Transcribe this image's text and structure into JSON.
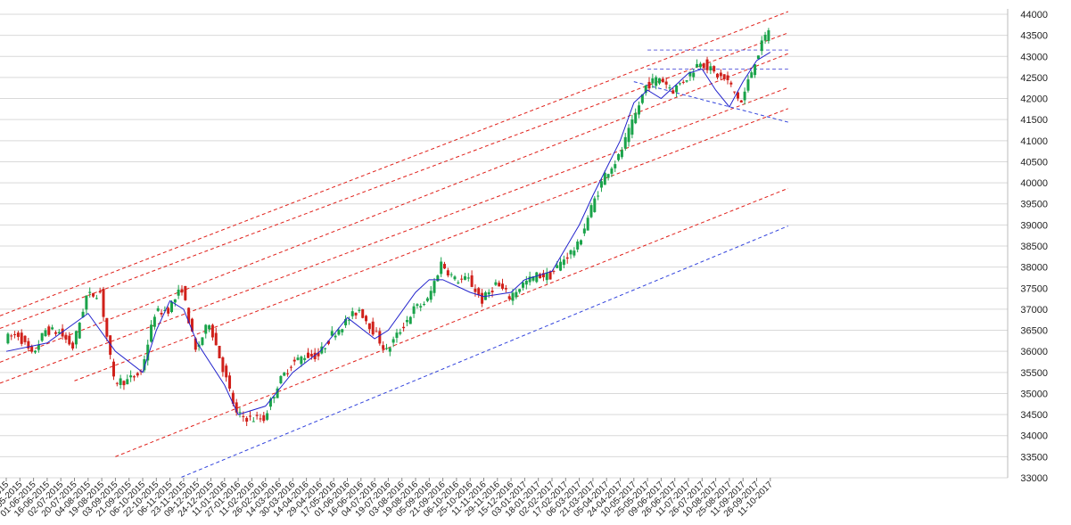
{
  "colors": {
    "background": "#ffffff",
    "grid": "#d9d9d9",
    "up_candle": "#1aa34a",
    "down_candle": "#d0201a",
    "moving_average": "#2222cc",
    "red_channel": "#e0201a",
    "blue_support": "#3344dd",
    "blue_dashed_level": "#6666dd"
  },
  "chart_data": {
    "type": "line",
    "subtype": "candlestick",
    "title": "",
    "xlabel": "",
    "ylabel": "",
    "y_axis_side": "right",
    "ylim": [
      33000,
      44000
    ],
    "y_ticks": [
      33000,
      33500,
      34000,
      34500,
      35000,
      35500,
      36000,
      36500,
      37000,
      37500,
      38000,
      38500,
      39000,
      39500,
      40000,
      40500,
      41000,
      41500,
      42000,
      42500,
      43000,
      43500,
      44000
    ],
    "x_tick_labels": [
      "30-04-2015",
      "14-05-2015",
      "01-06-2015",
      "16-06-2015",
      "02-07-2015",
      "20-07-2015",
      "04-08-2015",
      "19-08-2015",
      "03-09-2015",
      "21-09-2015",
      "06-10-2015",
      "22-10-2015",
      "06-11-2015",
      "23-11-2015",
      "09-12-2015",
      "24-12-2015",
      "11-01-2016",
      "27-01-2016",
      "11-02-2016",
      "26-02-2016",
      "14-03-2016",
      "30-03-2016",
      "14-04-2016",
      "29-04-2016",
      "17-05-2016",
      "01-06-2016",
      "16-06-2016",
      "04-07-2016",
      "19-07-2016",
      "03-08-2016",
      "19-08-2016",
      "05-09-2016",
      "21-09-2016",
      "06-10-2016",
      "25-10-2016",
      "11-11-2016",
      "29-11-2016",
      "15-12-2016",
      "03-01-2017",
      "18-01-2017",
      "02-02-2017",
      "17-02-2017",
      "06-03-2017",
      "21-03-2017",
      "05-04-2017",
      "24-04-2017",
      "10-05-2017",
      "25-05-2017",
      "09-06-2017",
      "26-06-2017",
      "11-07-2017",
      "26-07-2017",
      "10-08-2017",
      "25-08-2017",
      "11-09-2017",
      "26-09-2017",
      "11-10-2017"
    ],
    "grid": "horizontal",
    "legend": "none",
    "close_series": [
      {
        "date": "30-04-2015",
        "close": 36300
      },
      {
        "date": "14-05-2015",
        "close": 36400
      },
      {
        "date": "01-06-2015",
        "close": 35900
      },
      {
        "date": "16-06-2015",
        "close": 36500
      },
      {
        "date": "02-07-2015",
        "close": 36450
      },
      {
        "date": "20-07-2015",
        "close": 36100
      },
      {
        "date": "04-08-2015",
        "close": 37300
      },
      {
        "date": "19-08-2015",
        "close": 37400
      },
      {
        "date": "03-09-2015",
        "close": 35300
      },
      {
        "date": "21-09-2015",
        "close": 35300
      },
      {
        "date": "06-10-2015",
        "close": 35500
      },
      {
        "date": "22-10-2015",
        "close": 36900
      },
      {
        "date": "06-11-2015",
        "close": 37000
      },
      {
        "date": "23-11-2015",
        "close": 37500
      },
      {
        "date": "09-12-2015",
        "close": 36000
      },
      {
        "date": "24-12-2015",
        "close": 36700
      },
      {
        "date": "11-01-2016",
        "close": 35600
      },
      {
        "date": "27-01-2016",
        "close": 34500
      },
      {
        "date": "11-02-2016",
        "close": 34400
      },
      {
        "date": "26-02-2016",
        "close": 34400
      },
      {
        "date": "14-03-2016",
        "close": 35200
      },
      {
        "date": "30-03-2016",
        "close": 35700
      },
      {
        "date": "14-04-2016",
        "close": 35900
      },
      {
        "date": "29-04-2016",
        "close": 35900
      },
      {
        "date": "17-05-2016",
        "close": 36400
      },
      {
        "date": "01-06-2016",
        "close": 36700
      },
      {
        "date": "16-06-2016",
        "close": 37000
      },
      {
        "date": "04-07-2016",
        "close": 36500
      },
      {
        "date": "19-07-2016",
        "close": 36000
      },
      {
        "date": "03-08-2016",
        "close": 36500
      },
      {
        "date": "19-08-2016",
        "close": 37000
      },
      {
        "date": "05-09-2016",
        "close": 37200
      },
      {
        "date": "21-09-2016",
        "close": 38100
      },
      {
        "date": "06-10-2016",
        "close": 37700
      },
      {
        "date": "25-10-2016",
        "close": 37700
      },
      {
        "date": "11-11-2016",
        "close": 37200
      },
      {
        "date": "29-11-2016",
        "close": 37600
      },
      {
        "date": "15-12-2016",
        "close": 37300
      },
      {
        "date": "03-01-2017",
        "close": 37600
      },
      {
        "date": "18-01-2017",
        "close": 37800
      },
      {
        "date": "02-02-2017",
        "close": 37800
      },
      {
        "date": "17-02-2017",
        "close": 38200
      },
      {
        "date": "06-03-2017",
        "close": 38500
      },
      {
        "date": "21-03-2017",
        "close": 39400
      },
      {
        "date": "05-04-2017",
        "close": 40200
      },
      {
        "date": "24-04-2017",
        "close": 40600
      },
      {
        "date": "10-05-2017",
        "close": 41400
      },
      {
        "date": "25-05-2017",
        "close": 42300
      },
      {
        "date": "09-06-2017",
        "close": 42500
      },
      {
        "date": "26-06-2017",
        "close": 42200
      },
      {
        "date": "11-07-2017",
        "close": 42500
      },
      {
        "date": "26-07-2017",
        "close": 42900
      },
      {
        "date": "10-08-2017",
        "close": 42600
      },
      {
        "date": "25-08-2017",
        "close": 42400
      },
      {
        "date": "11-09-2017",
        "close": 41900
      },
      {
        "date": "26-09-2017",
        "close": 42900
      },
      {
        "date": "11-10-2017",
        "close": 43650
      }
    ],
    "moving_average": [
      {
        "date": "30-04-2015",
        "value": 36000
      },
      {
        "date": "16-06-2015",
        "value": 36200
      },
      {
        "date": "04-08-2015",
        "value": 36900
      },
      {
        "date": "03-09-2015",
        "value": 36000
      },
      {
        "date": "06-10-2015",
        "value": 35500
      },
      {
        "date": "22-10-2015",
        "value": 36500
      },
      {
        "date": "06-11-2015",
        "value": 37200
      },
      {
        "date": "23-11-2015",
        "value": 37000
      },
      {
        "date": "09-12-2015",
        "value": 36200
      },
      {
        "date": "11-01-2016",
        "value": 35200
      },
      {
        "date": "27-01-2016",
        "value": 34500
      },
      {
        "date": "26-02-2016",
        "value": 34700
      },
      {
        "date": "30-03-2016",
        "value": 35500
      },
      {
        "date": "29-04-2016",
        "value": 36000
      },
      {
        "date": "01-06-2016",
        "value": 36800
      },
      {
        "date": "04-07-2016",
        "value": 36300
      },
      {
        "date": "19-07-2016",
        "value": 36500
      },
      {
        "date": "19-08-2016",
        "value": 37400
      },
      {
        "date": "05-09-2016",
        "value": 37700
      },
      {
        "date": "21-09-2016",
        "value": 37700
      },
      {
        "date": "25-10-2016",
        "value": 37400
      },
      {
        "date": "11-11-2016",
        "value": 37300
      },
      {
        "date": "15-12-2016",
        "value": 37400
      },
      {
        "date": "03-01-2017",
        "value": 37700
      },
      {
        "date": "02-02-2017",
        "value": 37900
      },
      {
        "date": "06-03-2017",
        "value": 39000
      },
      {
        "date": "21-03-2017",
        "value": 39700
      },
      {
        "date": "24-04-2017",
        "value": 41000
      },
      {
        "date": "10-05-2017",
        "value": 41900
      },
      {
        "date": "25-05-2017",
        "value": 42200
      },
      {
        "date": "09-06-2017",
        "value": 42000
      },
      {
        "date": "26-06-2017",
        "value": 42300
      },
      {
        "date": "11-07-2017",
        "value": 42600
      },
      {
        "date": "26-07-2017",
        "value": 42700
      },
      {
        "date": "10-08-2017",
        "value": 42200
      },
      {
        "date": "25-08-2017",
        "value": 41800
      },
      {
        "date": "11-09-2017",
        "value": 42400
      },
      {
        "date": "26-09-2017",
        "value": 42900
      },
      {
        "date": "11-10-2017",
        "value": 43100
      }
    ],
    "trend_lines": [
      {
        "style": "red-dashed",
        "from": {
          "date": "30-04-2015",
          "value": 36900
        },
        "to": {
          "date": "11-10-2017",
          "value": 43900
        }
      },
      {
        "style": "red-dashed",
        "from": {
          "date": "30-04-2015",
          "value": 36600
        },
        "to": {
          "date": "11-10-2017",
          "value": 43400
        }
      },
      {
        "style": "red-dashed",
        "from": {
          "date": "30-04-2015",
          "value": 35800
        },
        "to": {
          "date": "11-10-2017",
          "value": 42900
        }
      },
      {
        "style": "red-dashed",
        "from": {
          "date": "30-04-2015",
          "value": 35300
        },
        "to": {
          "date": "11-10-2017",
          "value": 42100
        }
      },
      {
        "style": "red-dashed",
        "from": {
          "date": "20-07-2015",
          "value": 35300
        },
        "to": {
          "date": "11-10-2017",
          "value": 41600
        }
      },
      {
        "style": "red-dashed",
        "from": {
          "date": "03-09-2015",
          "value": 33500
        },
        "to": {
          "date": "11-10-2017",
          "value": 39700
        }
      },
      {
        "style": "blue-dashed",
        "from": {
          "date": "06-11-2015",
          "value": 32900
        },
        "to": {
          "date": "11-10-2017",
          "value": 38800
        }
      },
      {
        "style": "blue-dashed",
        "from": {
          "date": "25-05-2017",
          "value": 43150
        },
        "to": {
          "date": "11-10-2017",
          "value": 43150
        }
      },
      {
        "style": "blue-dashed",
        "from": {
          "date": "25-05-2017",
          "value": 42700
        },
        "to": {
          "date": "11-10-2017",
          "value": 42700
        }
      },
      {
        "style": "blue-dashed",
        "from": {
          "date": "10-05-2017",
          "value": 42400
        },
        "to": {
          "date": "11-10-2017",
          "value": 41550
        }
      }
    ]
  }
}
